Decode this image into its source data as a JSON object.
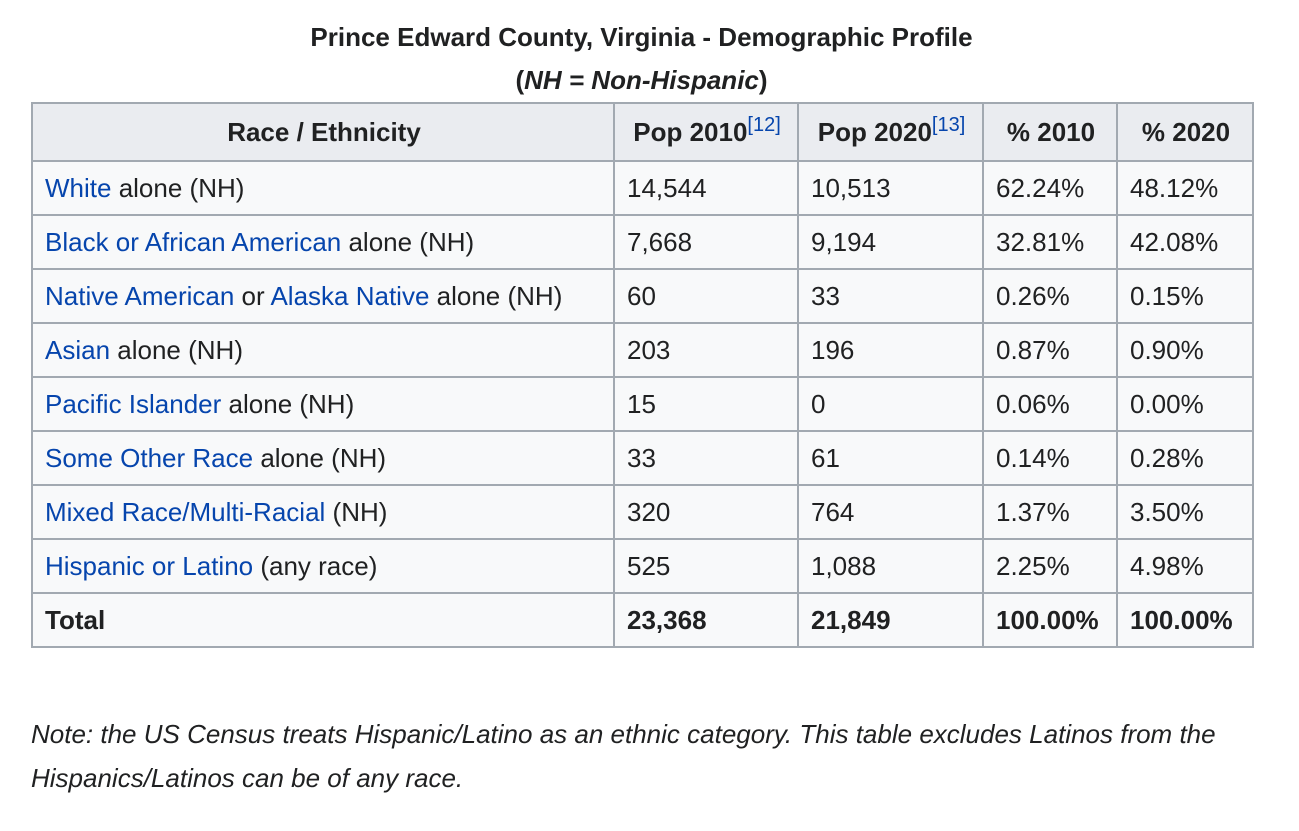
{
  "caption": {
    "title": "Prince Edward County, Virginia - Demographic Profile",
    "subtitle_open": "(",
    "subtitle_italic": "NH = Non-Hispanic",
    "subtitle_close": ")"
  },
  "table": {
    "headers": {
      "race": "Race / Ethnicity",
      "pop2010": "Pop 2010",
      "pop2010_ref": "[12]",
      "pop2020": "Pop 2020",
      "pop2020_ref": "[13]",
      "pct2010": "% 2010",
      "pct2020": "% 2020"
    },
    "rows": [
      {
        "link1": "White",
        "text1": " alone (NH)",
        "link2": "",
        "text2": "",
        "pop2010": "14,544",
        "pop2020": "10,513",
        "pct2010": "62.24%",
        "pct2020": "48.12%"
      },
      {
        "link1": "Black or African American",
        "text1": " alone (NH)",
        "link2": "",
        "text2": "",
        "pop2010": "7,668",
        "pop2020": "9,194",
        "pct2010": "32.81%",
        "pct2020": "42.08%"
      },
      {
        "link1": "Native American",
        "text1": " or ",
        "link2": "Alaska Native",
        "text2": " alone (NH)",
        "pop2010": "60",
        "pop2020": "33",
        "pct2010": "0.26%",
        "pct2020": "0.15%"
      },
      {
        "link1": "Asian",
        "text1": " alone (NH)",
        "link2": "",
        "text2": "",
        "pop2010": "203",
        "pop2020": "196",
        "pct2010": "0.87%",
        "pct2020": "0.90%"
      },
      {
        "link1": "Pacific Islander",
        "text1": " alone (NH)",
        "link2": "",
        "text2": "",
        "pop2010": "15",
        "pop2020": "0",
        "pct2010": "0.06%",
        "pct2020": "0.00%"
      },
      {
        "link1": "Some Other Race",
        "text1": " alone (NH)",
        "link2": "",
        "text2": "",
        "pop2010": "33",
        "pop2020": "61",
        "pct2010": "0.14%",
        "pct2020": "0.28%"
      },
      {
        "link1": "Mixed Race/Multi-Racial",
        "text1": " (NH)",
        "link2": "",
        "text2": "",
        "pop2010": "320",
        "pop2020": "764",
        "pct2010": "1.37%",
        "pct2020": "3.50%"
      },
      {
        "link1": "Hispanic or Latino",
        "text1": " (any race)",
        "link2": "",
        "text2": "",
        "pop2010": "525",
        "pop2020": "1,088",
        "pct2010": "2.25%",
        "pct2020": "4.98%"
      }
    ],
    "total": {
      "label": "Total",
      "pop2010": "23,368",
      "pop2020": "21,849",
      "pct2010": "100.00%",
      "pct2020": "100.00%"
    }
  },
  "note": {
    "line1": "Note: the US Census treats Hispanic/Latino as an ethnic category. This table excludes Latinos from the",
    "line2": "Hispanics/Latinos can be of any race."
  },
  "colors": {
    "link": "#0645ad",
    "header_bg": "#eaecf0",
    "cell_bg": "#f8f9fa",
    "border": "#a2a9b1",
    "text": "#202122"
  }
}
